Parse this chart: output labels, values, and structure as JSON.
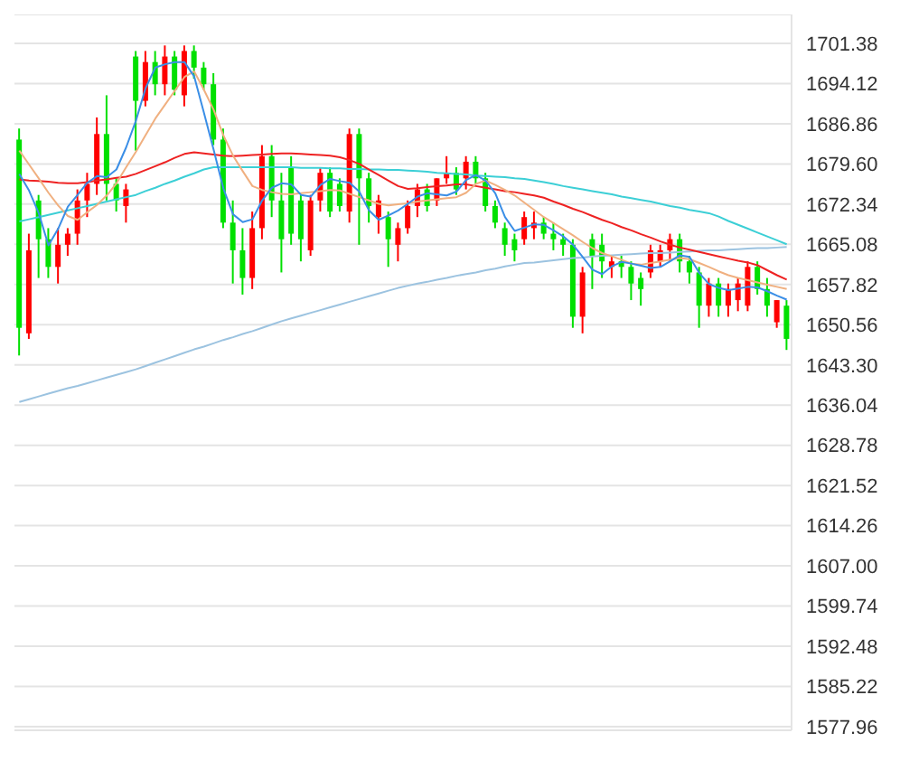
{
  "chart_data": {
    "type": "candlestick",
    "categories": [
      null,
      null,
      null,
      null,
      null,
      null,
      null,
      null,
      null,
      null,
      null,
      null,
      null,
      null,
      null,
      null,
      null,
      null,
      null,
      null,
      null,
      null,
      null,
      null,
      null,
      null,
      null,
      null,
      null,
      null,
      null,
      null,
      null,
      null,
      null,
      null,
      null,
      null,
      null,
      null,
      null,
      null,
      null,
      null,
      null,
      null,
      null,
      null,
      null,
      null,
      null,
      null,
      null,
      null,
      null,
      null,
      null,
      null,
      null,
      null,
      null,
      null,
      null,
      null,
      null,
      null,
      null,
      null,
      null,
      null,
      null,
      null,
      null,
      null,
      null,
      null,
      null,
      null,
      null,
      null
    ],
    "ohlc": [
      [
        1684,
        1686,
        1645,
        1650
      ],
      [
        1649,
        1667,
        1648,
        1664
      ],
      [
        1673,
        1674,
        1659,
        1666
      ],
      [
        1666,
        1668,
        1659,
        1661
      ],
      [
        1661,
        1668,
        1658,
        1665
      ],
      [
        1665,
        1668,
        1663,
        1667
      ],
      [
        1667,
        1675,
        1665,
        1673
      ],
      [
        1673,
        1678,
        1670,
        1676
      ],
      [
        1676,
        1688,
        1674,
        1685
      ],
      [
        1685,
        1692,
        1673,
        1676
      ],
      [
        1676,
        1677,
        1671,
        1673
      ],
      [
        1672,
        1676,
        1669,
        1675
      ],
      [
        1699,
        1700,
        1682,
        1691
      ],
      [
        1691,
        1700,
        1690,
        1698
      ],
      [
        1698,
        1700,
        1692,
        1694
      ],
      [
        1694,
        1701,
        1692,
        1699
      ],
      [
        1699,
        1700,
        1692,
        1693
      ],
      [
        1692,
        1701,
        1690,
        1700
      ],
      [
        1700,
        1701,
        1695,
        1697
      ],
      [
        1697,
        1698,
        1693,
        1694
      ],
      [
        1694,
        1696,
        1683,
        1684
      ],
      [
        1684,
        1686,
        1668,
        1669
      ],
      [
        1669,
        1673,
        1658,
        1664
      ],
      [
        1664,
        1668,
        1656,
        1659
      ],
      [
        1659,
        1671,
        1657,
        1668
      ],
      [
        1668,
        1683,
        1666,
        1681
      ],
      [
        1681,
        1683,
        1670,
        1673
      ],
      [
        1673,
        1678,
        1660,
        1666
      ],
      [
        1679,
        1681,
        1665,
        1667
      ],
      [
        1673,
        1674,
        1662,
        1666
      ],
      [
        1664,
        1674,
        1663,
        1673
      ],
      [
        1673,
        1679,
        1671,
        1678
      ],
      [
        1678,
        1679,
        1670,
        1671
      ],
      [
        1676,
        1677,
        1671,
        1672
      ],
      [
        1671,
        1686,
        1669,
        1685
      ],
      [
        1685,
        1686,
        1665,
        1677
      ],
      [
        1677,
        1678,
        1669,
        1672
      ],
      [
        1670,
        1674,
        1667,
        1673
      ],
      [
        1670,
        1671,
        1661,
        1666
      ],
      [
        1665,
        1669,
        1662,
        1668
      ],
      [
        1668,
        1673,
        1667,
        1672
      ],
      [
        1672,
        1676,
        1670,
        1675
      ],
      [
        1675,
        1676,
        1671,
        1672
      ],
      [
        1673,
        1677,
        1672,
        1677
      ],
      [
        1677,
        1681,
        1676,
        1678
      ],
      [
        1678,
        1679,
        1674,
        1675
      ],
      [
        1677,
        1681,
        1675,
        1680
      ],
      [
        1680,
        1681,
        1676,
        1677
      ],
      [
        1677,
        1678,
        1671,
        1672
      ],
      [
        1672,
        1673,
        1668,
        1669
      ],
      [
        1668,
        1669,
        1663,
        1665
      ],
      [
        1666,
        1667,
        1662,
        1664
      ],
      [
        1666,
        1671,
        1665,
        1670
      ],
      [
        1668,
        1671,
        1666,
        1669
      ],
      [
        1669,
        1670,
        1666,
        1667
      ],
      [
        1667,
        1669,
        1664,
        1666
      ],
      [
        1666,
        1667,
        1663,
        1665
      ],
      [
        1665,
        1666,
        1650,
        1652
      ],
      [
        1652,
        1661,
        1649,
        1660
      ],
      [
        1666,
        1667,
        1657,
        1663
      ],
      [
        1665,
        1667,
        1659,
        1662
      ],
      [
        1661,
        1663,
        1659,
        1662
      ],
      [
        1662,
        1663,
        1659,
        1661
      ],
      [
        1661,
        1662,
        1655,
        1658
      ],
      [
        1659,
        1660,
        1654,
        1657
      ],
      [
        1660,
        1665,
        1659,
        1664
      ],
      [
        1662,
        1665,
        1661,
        1664
      ],
      [
        1664,
        1667,
        1662,
        1666
      ],
      [
        1666,
        1667,
        1660,
        1662
      ],
      [
        1662,
        1663,
        1658,
        1660
      ],
      [
        1660,
        1661,
        1650,
        1654
      ],
      [
        1654,
        1659,
        1652,
        1658
      ],
      [
        1658,
        1659,
        1652,
        1654
      ],
      [
        1654,
        1658,
        1652,
        1657
      ],
      [
        1655,
        1659,
        1653,
        1658
      ],
      [
        1654,
        1662,
        1653,
        1661
      ],
      [
        1661,
        1662,
        1656,
        1657
      ],
      [
        1657,
        1659,
        1652,
        1654
      ],
      [
        1651,
        1655,
        1650,
        1655
      ],
      [
        1654,
        1655,
        1646,
        1648
      ]
    ],
    "colors": [
      "#00e000",
      "#ff0000",
      "#00e000",
      "#00e000",
      "#ff0000",
      "#ff0000",
      "#ff0000",
      "#ff0000",
      "#ff0000",
      "#00e000",
      "#00e000",
      "#ff0000",
      "#00e000",
      "#ff0000",
      "#00e000",
      "#ff0000",
      "#00e000",
      "#ff0000",
      "#00e000",
      "#00e000",
      "#00e000",
      "#00e000",
      "#00e000",
      "#00e000",
      "#ff0000",
      "#ff0000",
      "#00e000",
      "#00e000",
      "#00e000",
      "#00e000",
      "#ff0000",
      "#ff0000",
      "#00e000",
      "#00e000",
      "#ff0000",
      "#00e000",
      "#00e000",
      "#ff0000",
      "#00e000",
      "#ff0000",
      "#ff0000",
      "#ff0000",
      "#00e000",
      "#ff0000",
      "#ff0000",
      "#00e000",
      "#ff0000",
      "#00e000",
      "#00e000",
      "#00e000",
      "#00e000",
      "#00e000",
      "#ff0000",
      "#ff0000",
      "#00e000",
      "#00e000",
      "#00e000",
      "#00e000",
      "#ff0000",
      "#00e000",
      "#00e000",
      "#ff0000",
      "#00e000",
      "#00e000",
      "#00e000",
      "#ff0000",
      "#ff0000",
      "#ff0000",
      "#00e000",
      "#00e000",
      "#00e000",
      "#ff0000",
      "#00e000",
      "#ff0000",
      "#ff0000",
      "#ff0000",
      "#00e000",
      "#00e000",
      "#ff0000",
      "#00e000"
    ],
    "series": [
      {
        "type": "line",
        "color": "#9cc3e0",
        "values": [
          1636.6,
          1637.1,
          1637.6,
          1638.1,
          1638.6,
          1639.1,
          1639.5,
          1640.0,
          1640.5,
          1641.0,
          1641.5,
          1642.0,
          1642.5,
          1643.1,
          1643.7,
          1644.3,
          1644.9,
          1645.5,
          1646.1,
          1646.6,
          1647.2,
          1647.8,
          1648.3,
          1648.9,
          1649.4,
          1650.0,
          1650.6,
          1651.2,
          1651.7,
          1652.2,
          1652.7,
          1653.2,
          1653.7,
          1654.2,
          1654.7,
          1655.2,
          1655.7,
          1656.2,
          1656.7,
          1657.2,
          1657.6,
          1658.0,
          1658.3,
          1658.7,
          1659.0,
          1659.4,
          1659.7,
          1660.0,
          1660.4,
          1660.7,
          1661.1,
          1661.4,
          1661.7,
          1661.8,
          1662.0,
          1662.2,
          1662.4,
          1662.6,
          1662.7,
          1662.9,
          1663.0,
          1663.1,
          1663.2,
          1663.3,
          1663.4,
          1663.5,
          1663.5,
          1663.6,
          1663.7,
          1663.8,
          1663.9,
          1664.0,
          1664.0,
          1664.1,
          1664.2,
          1664.3,
          1664.4,
          1664.4,
          1664.5,
          1664.6
        ]
      },
      {
        "type": "line",
        "color": "#3ccfd6",
        "values": [
          1669.2,
          1669.6,
          1670.0,
          1670.4,
          1670.8,
          1671.2,
          1671.6,
          1672.0,
          1672.4,
          1672.8,
          1673.2,
          1673.6,
          1674.0,
          1674.7,
          1675.3,
          1676.0,
          1676.6,
          1677.3,
          1677.9,
          1678.6,
          1679.0,
          1679.0,
          1679.0,
          1679.0,
          1679.0,
          1679.0,
          1679.0,
          1679.0,
          1679.0,
          1678.9,
          1678.9,
          1678.9,
          1678.8,
          1678.8,
          1678.7,
          1678.7,
          1678.6,
          1678.6,
          1678.5,
          1678.5,
          1678.4,
          1678.3,
          1678.2,
          1678.0,
          1677.9,
          1677.8,
          1677.7,
          1677.5,
          1677.4,
          1677.3,
          1677.2,
          1677.0,
          1676.9,
          1676.6,
          1676.3,
          1676.0,
          1675.6,
          1675.3,
          1675.0,
          1674.7,
          1674.4,
          1674.1,
          1673.7,
          1673.4,
          1673.1,
          1672.8,
          1672.4,
          1672.0,
          1671.7,
          1671.3,
          1671.0,
          1670.7,
          1670.1,
          1669.3,
          1668.6,
          1667.9,
          1667.2,
          1666.5,
          1665.8,
          1665.1
        ]
      },
      {
        "type": "line",
        "color": "#ee2222",
        "values": [
          1676.8,
          1676.6,
          1676.5,
          1676.4,
          1676.2,
          1676.1,
          1676.1,
          1676.3,
          1676.6,
          1676.8,
          1677.1,
          1677.3,
          1677.8,
          1678.5,
          1679.2,
          1679.9,
          1680.7,
          1681.4,
          1681.7,
          1681.5,
          1681.3,
          1681.1,
          1681.0,
          1681.1,
          1681.2,
          1681.3,
          1681.4,
          1681.5,
          1681.5,
          1681.4,
          1681.3,
          1681.2,
          1681.1,
          1680.8,
          1680.3,
          1679.6,
          1678.6,
          1677.6,
          1676.6,
          1675.6,
          1675.1,
          1675.2,
          1675.4,
          1675.6,
          1675.7,
          1675.9,
          1675.9,
          1675.6,
          1675.3,
          1675.0,
          1674.7,
          1674.5,
          1674.2,
          1673.9,
          1673.5,
          1672.8,
          1672.2,
          1671.5,
          1670.9,
          1670.2,
          1669.5,
          1668.9,
          1668.2,
          1667.6,
          1666.9,
          1666.3,
          1665.6,
          1665.0,
          1664.5,
          1664.1,
          1663.7,
          1663.3,
          1662.9,
          1662.5,
          1662.1,
          1661.8,
          1661.3,
          1660.4,
          1659.5,
          1658.7
        ]
      },
      {
        "type": "line",
        "color": "#f0b080",
        "values": [
          1682.0,
          1679.5,
          1677.0,
          1674.4,
          1672.1,
          1670.2,
          1669.5,
          1670.9,
          1672.2,
          1673.9,
          1676.1,
          1679.0,
          1681.8,
          1684.8,
          1687.8,
          1690.3,
          1692.8,
          1695.3,
          1696.3,
          1693.0,
          1689.4,
          1684.8,
          1681.1,
          1678.3,
          1675.6,
          1674.9,
          1674.5,
          1674.2,
          1674.1,
          1674.3,
          1674.5,
          1674.7,
          1674.9,
          1674.8,
          1674.2,
          1673.6,
          1673.0,
          1672.4,
          1672.1,
          1672.3,
          1672.5,
          1672.8,
          1673.0,
          1673.2,
          1673.4,
          1673.6,
          1674.4,
          1676.0,
          1676.6,
          1675.8,
          1674.9,
          1673.9,
          1672.6,
          1671.3,
          1670.0,
          1668.9,
          1667.8,
          1666.7,
          1665.5,
          1664.4,
          1663.5,
          1662.9,
          1662.3,
          1661.6,
          1661.4,
          1661.7,
          1662.0,
          1662.3,
          1662.6,
          1662.4,
          1661.7,
          1661.0,
          1660.2,
          1659.5,
          1659.0,
          1658.6,
          1658.2,
          1657.8,
          1657.4,
          1657.0
        ]
      },
      {
        "type": "line",
        "color": "#3a8ee6",
        "values": [
          1677.8,
          1674.8,
          1670.7,
          1664.9,
          1667.9,
          1671.9,
          1674.0,
          1676.2,
          1677.4,
          1677.2,
          1678.6,
          1682.6,
          1687.4,
          1693.3,
          1697.0,
          1697.6,
          1698.0,
          1698.0,
          1695.4,
          1688.9,
          1682.2,
          1675.2,
          1670.5,
          1669.1,
          1669.6,
          1673.0,
          1675.3,
          1676.1,
          1675.9,
          1674.0,
          1673.7,
          1675.8,
          1676.9,
          1676.5,
          1676.2,
          1674.6,
          1671.2,
          1669.5,
          1670.3,
          1671.2,
          1672.4,
          1673.7,
          1674.3,
          1674.1,
          1673.9,
          1674.6,
          1676.7,
          1677.6,
          1676.6,
          1674.3,
          1670.0,
          1667.5,
          1668.1,
          1668.7,
          1668.6,
          1667.6,
          1666.5,
          1665.0,
          1662.8,
          1660.5,
          1659.7,
          1661.1,
          1661.9,
          1661.6,
          1661.2,
          1660.8,
          1661.0,
          1662.0,
          1663.1,
          1662.8,
          1659.9,
          1657.9,
          1657.2,
          1656.8,
          1657.1,
          1657.4,
          1657.3,
          1656.6,
          1655.8,
          1655.1
        ]
      }
    ],
    "ylim": [
      1577.3,
      1706.6
    ],
    "yticks": [
      1701.38,
      1694.12,
      1686.86,
      {
        "value": 1679.6,
        "label": "1679.60"
      },
      1672.34,
      1665.08,
      1657.82,
      1650.56,
      {
        "value": 1643.3,
        "label": "1643.30"
      },
      1636.04,
      1628.78,
      1621.52,
      1614.26,
      {
        "value": 1607,
        "label": "1607.00"
      },
      1599.74,
      1592.48,
      1585.22,
      1577.96
    ],
    "grid": "y",
    "tick_labels": "y"
  }
}
